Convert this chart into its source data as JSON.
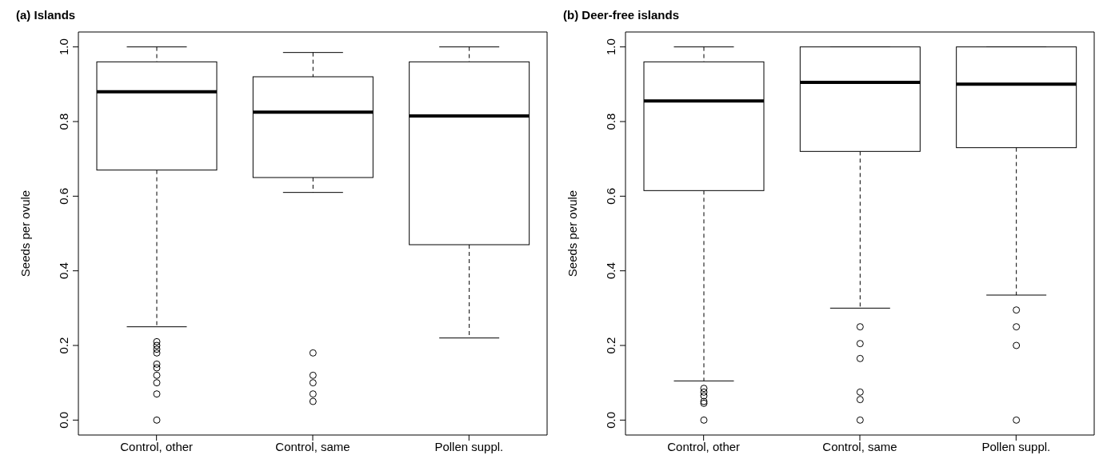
{
  "chart_data": [
    {
      "type": "box",
      "title": "(a) Islands",
      "ylabel": "Seeds per ovule",
      "categories": [
        "Control, other",
        "Control, same",
        "Pollen suppl."
      ],
      "boxes": [
        {
          "low": 0.25,
          "q1": 0.67,
          "median": 0.88,
          "q3": 0.96,
          "high": 1.0,
          "outliers": [
            0.21,
            0.2,
            0.19,
            0.18,
            0.15,
            0.14,
            0.12,
            0.1,
            0.07,
            0.0
          ]
        },
        {
          "low": 0.61,
          "q1": 0.65,
          "median": 0.825,
          "q3": 0.92,
          "high": 0.985,
          "outliers": [
            0.18,
            0.12,
            0.1,
            0.07,
            0.05
          ]
        },
        {
          "low": 0.22,
          "q1": 0.47,
          "median": 0.815,
          "q3": 0.96,
          "high": 1.0
        }
      ],
      "ylim": [
        -0.04,
        1.04
      ],
      "yticks": [
        {
          "value": 0,
          "label": "0.0"
        },
        {
          "value": 0.2,
          "label": "0.2"
        },
        {
          "value": 0.4,
          "label": "0.4"
        },
        {
          "value": 0.6,
          "label": "0.6"
        },
        {
          "value": 0.8,
          "label": "0.8"
        },
        {
          "value": 1,
          "label": "1.0"
        }
      ],
      "grid": false,
      "legend": false
    },
    {
      "type": "box",
      "title": "(b) Deer-free islands",
      "ylabel": "Seeds per ovule",
      "categories": [
        "Control, other",
        "Control, same",
        "Pollen suppl."
      ],
      "boxes": [
        {
          "low": 0.105,
          "q1": 0.615,
          "median": 0.855,
          "q3": 0.96,
          "high": 1.0,
          "outliers": [
            0.085,
            0.075,
            0.065,
            0.05,
            0.045,
            0.0
          ]
        },
        {
          "low": 0.3,
          "q1": 0.72,
          "median": 0.905,
          "q3": 1.0,
          "high": 1.0,
          "outliers": [
            0.25,
            0.205,
            0.165,
            0.075,
            0.055,
            0.0
          ]
        },
        {
          "low": 0.335,
          "q1": 0.73,
          "median": 0.9,
          "q3": 1.0,
          "high": 1.0,
          "outliers": [
            0.295,
            0.25,
            0.2,
            0.0
          ]
        }
      ],
      "ylim": [
        -0.04,
        1.04
      ],
      "yticks": [
        {
          "value": 0,
          "label": "0.0"
        },
        {
          "value": 0.2,
          "label": "0.2"
        },
        {
          "value": 0.4,
          "label": "0.4"
        },
        {
          "value": 0.6,
          "label": "0.6"
        },
        {
          "value": 0.8,
          "label": "0.8"
        },
        {
          "value": 1,
          "label": "1.0"
        }
      ],
      "grid": false,
      "legend": false
    }
  ]
}
